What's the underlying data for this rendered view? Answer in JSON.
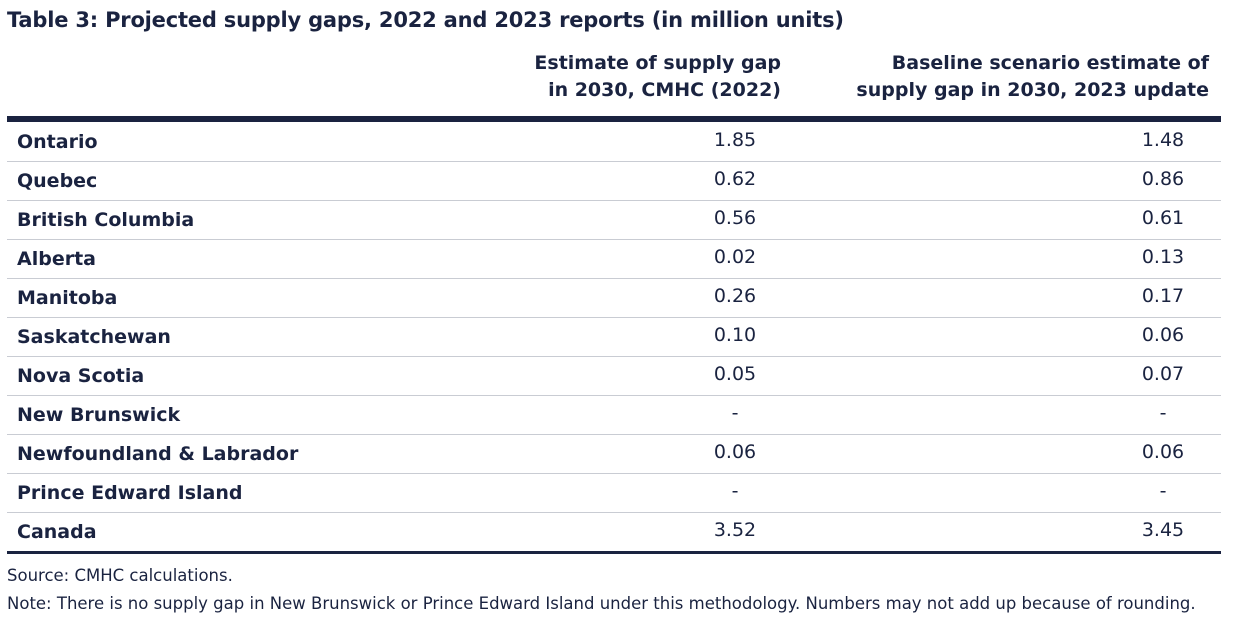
{
  "title": "Table 3: Projected supply gaps, 2022 and 2023 reports (in million units)",
  "columns": [
    {
      "line1": "Estimate of supply gap",
      "line2": "in 2030, CMHC (2022)"
    },
    {
      "line1": "Baseline scenario estimate of",
      "line2": "supply gap in 2030, 2023 update"
    }
  ],
  "rows": [
    {
      "name": "Ontario",
      "v2022": "1.85",
      "v2023": "1.48"
    },
    {
      "name": "Quebec",
      "v2022": "0.62",
      "v2023": "0.86"
    },
    {
      "name": "British Columbia",
      "v2022": "0.56",
      "v2023": "0.61"
    },
    {
      "name": "Alberta",
      "v2022": "0.02",
      "v2023": "0.13"
    },
    {
      "name": "Manitoba",
      "v2022": "0.26",
      "v2023": "0.17"
    },
    {
      "name": "Saskatchewan",
      "v2022": "0.10",
      "v2023": "0.06"
    },
    {
      "name": "Nova Scotia",
      "v2022": "0.05",
      "v2023": "0.07"
    },
    {
      "name": "New Brunswick",
      "v2022": "-",
      "v2023": "-"
    },
    {
      "name": "Newfoundland & Labrador",
      "v2022": "0.06",
      "v2023": "0.06"
    },
    {
      "name": "Prince Edward Island",
      "v2022": "-",
      "v2023": "-"
    },
    {
      "name": "Canada",
      "v2022": "3.52",
      "v2023": "3.45"
    }
  ],
  "source": "Source: CMHC calculations.",
  "note": "Note: There is no supply gap in New Brunswick or Prince Edward Island under this methodology. Numbers may not add up because of rounding.",
  "colors": {
    "text": "#1a2340",
    "rule": "#1a2340",
    "row_divider": "#c9ccd3"
  }
}
